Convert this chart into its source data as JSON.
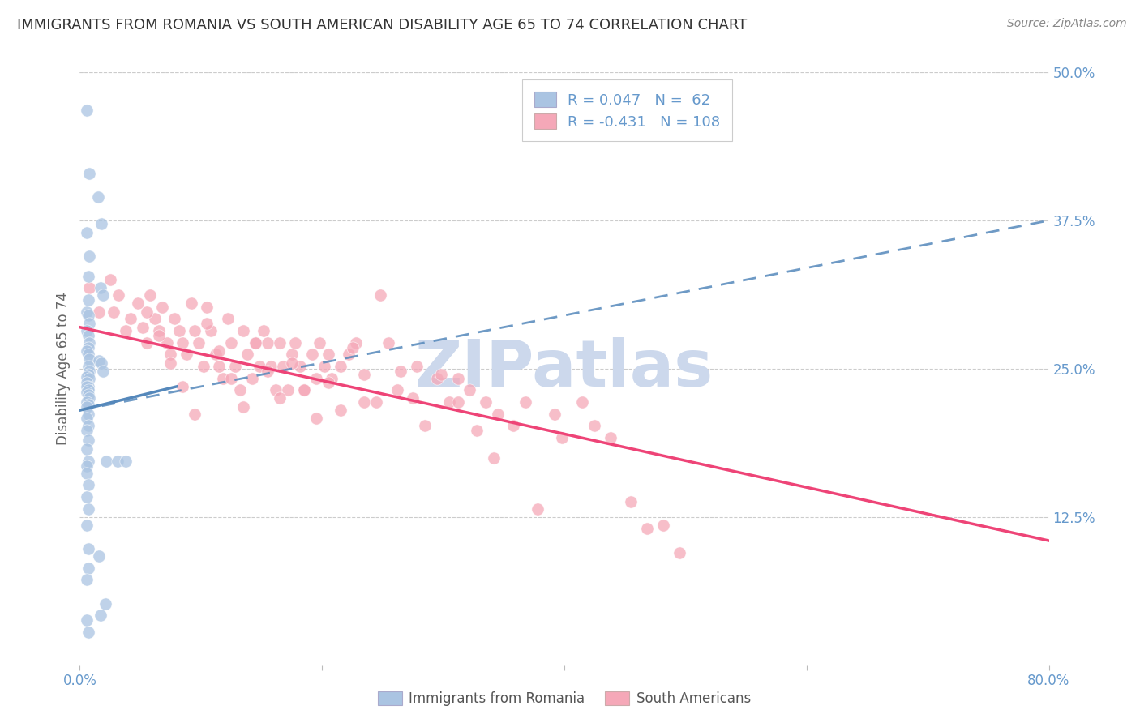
{
  "title": "IMMIGRANTS FROM ROMANIA VS SOUTH AMERICAN DISABILITY AGE 65 TO 74 CORRELATION CHART",
  "source": "Source: ZipAtlas.com",
  "ylabel": "Disability Age 65 to 74",
  "xlim": [
    0.0,
    0.8
  ],
  "ylim": [
    0.0,
    0.5
  ],
  "ytick_right_labels": [
    "50.0%",
    "37.5%",
    "25.0%",
    "12.5%"
  ],
  "ytick_right_values": [
    0.5,
    0.375,
    0.25,
    0.125
  ],
  "romania_R": 0.047,
  "romania_N": 62,
  "southam_R": -0.431,
  "southam_N": 108,
  "romania_color": "#aac4e2",
  "southam_color": "#f5a8b8",
  "romania_line_color": "#5588bb",
  "southam_line_color": "#ee4477",
  "background_color": "#ffffff",
  "grid_color": "#cccccc",
  "title_color": "#333333",
  "axis_color": "#6699cc",
  "watermark_color": "#ccd8ec",
  "romania_scatter_x": [
    0.006,
    0.008,
    0.015,
    0.018,
    0.006,
    0.008,
    0.007,
    0.017,
    0.019,
    0.007,
    0.006,
    0.007,
    0.008,
    0.006,
    0.007,
    0.008,
    0.007,
    0.006,
    0.007,
    0.008,
    0.016,
    0.018,
    0.007,
    0.008,
    0.019,
    0.007,
    0.006,
    0.008,
    0.006,
    0.007,
    0.006,
    0.007,
    0.006,
    0.007,
    0.008,
    0.006,
    0.007,
    0.006,
    0.007,
    0.006,
    0.007,
    0.006,
    0.007,
    0.006,
    0.007,
    0.006,
    0.022,
    0.031,
    0.038,
    0.006,
    0.007,
    0.006,
    0.007,
    0.006,
    0.007,
    0.016,
    0.007,
    0.006,
    0.021,
    0.017,
    0.006,
    0.007
  ],
  "romania_scatter_y": [
    0.468,
    0.415,
    0.395,
    0.372,
    0.365,
    0.345,
    0.328,
    0.318,
    0.312,
    0.308,
    0.298,
    0.295,
    0.288,
    0.282,
    0.278,
    0.272,
    0.268,
    0.265,
    0.262,
    0.258,
    0.257,
    0.255,
    0.252,
    0.248,
    0.248,
    0.245,
    0.243,
    0.242,
    0.238,
    0.235,
    0.235,
    0.232,
    0.23,
    0.228,
    0.225,
    0.222,
    0.22,
    0.218,
    0.212,
    0.208,
    0.202,
    0.198,
    0.19,
    0.182,
    0.172,
    0.168,
    0.172,
    0.172,
    0.172,
    0.162,
    0.152,
    0.142,
    0.132,
    0.118,
    0.098,
    0.092,
    0.082,
    0.072,
    0.052,
    0.042,
    0.038,
    0.028
  ],
  "southam_scatter_x": [
    0.008,
    0.016,
    0.025,
    0.028,
    0.032,
    0.038,
    0.042,
    0.048,
    0.052,
    0.055,
    0.058,
    0.062,
    0.065,
    0.068,
    0.072,
    0.075,
    0.078,
    0.082,
    0.085,
    0.088,
    0.092,
    0.095,
    0.098,
    0.102,
    0.105,
    0.108,
    0.112,
    0.115,
    0.118,
    0.122,
    0.125,
    0.128,
    0.132,
    0.135,
    0.138,
    0.142,
    0.145,
    0.148,
    0.152,
    0.155,
    0.158,
    0.162,
    0.165,
    0.168,
    0.172,
    0.175,
    0.178,
    0.182,
    0.185,
    0.192,
    0.195,
    0.198,
    0.202,
    0.205,
    0.208,
    0.215,
    0.222,
    0.228,
    0.235,
    0.248,
    0.262,
    0.278,
    0.295,
    0.305,
    0.312,
    0.322,
    0.335,
    0.345,
    0.358,
    0.368,
    0.378,
    0.392,
    0.398,
    0.415,
    0.425,
    0.438,
    0.055,
    0.065,
    0.075,
    0.085,
    0.095,
    0.105,
    0.115,
    0.125,
    0.135,
    0.145,
    0.155,
    0.165,
    0.175,
    0.185,
    0.195,
    0.205,
    0.215,
    0.225,
    0.235,
    0.245,
    0.255,
    0.265,
    0.275,
    0.285,
    0.298,
    0.312,
    0.328,
    0.342,
    0.455,
    0.468,
    0.482,
    0.495
  ],
  "southam_scatter_y": [
    0.318,
    0.298,
    0.325,
    0.298,
    0.312,
    0.282,
    0.292,
    0.305,
    0.285,
    0.272,
    0.312,
    0.292,
    0.282,
    0.302,
    0.272,
    0.262,
    0.292,
    0.282,
    0.272,
    0.262,
    0.305,
    0.282,
    0.272,
    0.252,
    0.302,
    0.282,
    0.262,
    0.252,
    0.242,
    0.292,
    0.272,
    0.252,
    0.232,
    0.282,
    0.262,
    0.242,
    0.272,
    0.252,
    0.282,
    0.272,
    0.252,
    0.232,
    0.272,
    0.252,
    0.232,
    0.262,
    0.272,
    0.252,
    0.232,
    0.262,
    0.242,
    0.272,
    0.252,
    0.262,
    0.242,
    0.252,
    0.262,
    0.272,
    0.222,
    0.312,
    0.232,
    0.252,
    0.242,
    0.222,
    0.242,
    0.232,
    0.222,
    0.212,
    0.202,
    0.222,
    0.132,
    0.212,
    0.192,
    0.222,
    0.202,
    0.192,
    0.298,
    0.278,
    0.255,
    0.235,
    0.212,
    0.288,
    0.265,
    0.242,
    0.218,
    0.272,
    0.248,
    0.225,
    0.255,
    0.232,
    0.208,
    0.238,
    0.215,
    0.268,
    0.245,
    0.222,
    0.272,
    0.248,
    0.225,
    0.202,
    0.245,
    0.222,
    0.198,
    0.175,
    0.138,
    0.115,
    0.118,
    0.095
  ]
}
